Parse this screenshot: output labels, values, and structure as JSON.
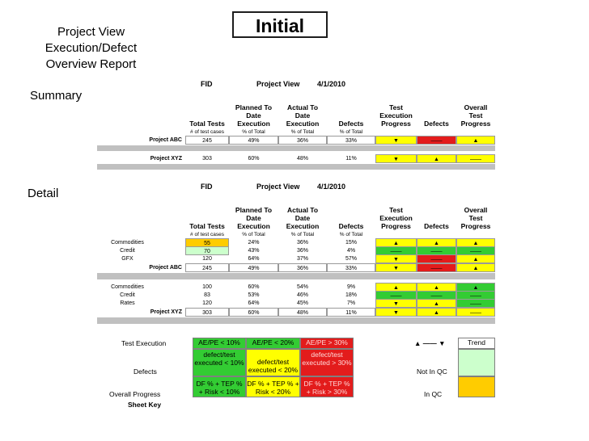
{
  "header": {
    "badge": "Initial",
    "report_title": [
      "Project View",
      "Execution/Defect",
      "Overview Report"
    ]
  },
  "sections": {
    "summary": "Summary",
    "detail": "Detail"
  },
  "table_header": {
    "fid": "FID",
    "view": "Project View",
    "date": "4/1/2010",
    "columns": [
      [
        "Total Tests"
      ],
      [
        "Planned To",
        "Date",
        "Execution"
      ],
      [
        "Actual To",
        "Date",
        "Execution"
      ],
      [
        "Defects"
      ],
      [
        "Test",
        "Execution",
        "Progress"
      ],
      [
        "Defects"
      ],
      [
        "Overall",
        "Test",
        "Progress"
      ]
    ],
    "subcolumns": [
      "# of test cases",
      "% of Total",
      "% of Total",
      "% of Total"
    ]
  },
  "summary_rows": [
    {
      "name": "Project ABC",
      "values": [
        "245",
        "49%",
        "36%",
        "33%"
      ],
      "trends": [
        {
          "s": "▼",
          "c": "yellow"
        },
        {
          "s": "——",
          "c": "red"
        },
        {
          "s": "▲",
          "c": "yellow"
        }
      ]
    },
    {
      "name": "Project XYZ",
      "values": [
        "303",
        "60%",
        "48%",
        "11%"
      ],
      "trends": [
        {
          "s": "▼",
          "c": "yellow"
        },
        {
          "s": "▲",
          "c": "yellow"
        },
        {
          "s": "——",
          "c": "yellow"
        }
      ]
    }
  ],
  "detail_groups": [
    {
      "rows": [
        {
          "name": "Commodities",
          "values": [
            "55",
            "24%",
            "36%",
            "15%"
          ],
          "first_color": "orange",
          "trends": [
            {
              "s": "▲",
              "c": "yellow"
            },
            {
              "s": "▲",
              "c": "yellow"
            },
            {
              "s": "▲",
              "c": "yellow"
            }
          ]
        },
        {
          "name": "Credit",
          "values": [
            "70",
            "43%",
            "36%",
            "4%"
          ],
          "first_color": "lightgreen",
          "trends": [
            {
              "s": "——",
              "c": "green"
            },
            {
              "s": "——",
              "c": "green"
            },
            {
              "s": "——",
              "c": "green"
            }
          ]
        },
        {
          "name": "GFX",
          "values": [
            "120",
            "64%",
            "37%",
            "57%"
          ],
          "first_color": "",
          "trends": [
            {
              "s": "▼",
              "c": "yellow"
            },
            {
              "s": "——",
              "c": "red"
            },
            {
              "s": "▲",
              "c": "yellow"
            }
          ]
        }
      ],
      "total": {
        "name": "Project ABC",
        "values": [
          "245",
          "49%",
          "36%",
          "33%"
        ],
        "trends": [
          {
            "s": "▼",
            "c": "yellow"
          },
          {
            "s": "——",
            "c": "red"
          },
          {
            "s": "▲",
            "c": "yellow"
          }
        ]
      }
    },
    {
      "rows": [
        {
          "name": "Commodities",
          "values": [
            "100",
            "60%",
            "54%",
            "9%"
          ],
          "first_color": "",
          "trends": [
            {
              "s": "▲",
              "c": "yellow"
            },
            {
              "s": "▲",
              "c": "yellow"
            },
            {
              "s": "▲",
              "c": "green"
            }
          ]
        },
        {
          "name": "Credit",
          "values": [
            "83",
            "53%",
            "46%",
            "18%"
          ],
          "first_color": "",
          "trends": [
            {
              "s": "——",
              "c": "green"
            },
            {
              "s": "——",
              "c": "green"
            },
            {
              "s": "——",
              "c": "green"
            }
          ]
        },
        {
          "name": "Rates",
          "values": [
            "120",
            "64%",
            "45%",
            "7%"
          ],
          "first_color": "",
          "trends": [
            {
              "s": "▼",
              "c": "yellow"
            },
            {
              "s": "▲",
              "c": "yellow"
            },
            {
              "s": "——",
              "c": "green"
            }
          ]
        }
      ],
      "total": {
        "name": "Project XYZ",
        "values": [
          "303",
          "60%",
          "48%",
          "11%"
        ],
        "trends": [
          {
            "s": "▼",
            "c": "yellow"
          },
          {
            "s": "▲",
            "c": "yellow"
          },
          {
            "s": "——",
            "c": "yellow"
          }
        ]
      }
    }
  ],
  "sheet_key": {
    "title": "Sheet Key",
    "row_labels": [
      "Test Execution",
      "Defects",
      "Overall Progress"
    ],
    "cells": [
      [
        "AE/PE  < 10%",
        "AE/PE  < 20%",
        "AE/PE  > 30%"
      ],
      [
        "defect/test executed < 10%",
        "defect/test executed < 20%",
        "defect/test executed > 30%"
      ],
      [
        "DF % + TEP % + Risk < 10%",
        "DF % + TEP % + Risk < 20%",
        "DF % + TEP % + Risk > 30%"
      ]
    ],
    "trend_symbols": "▲ —— ▼",
    "trend_label": "Trend",
    "not_in_qc": "Not In QC",
    "in_qc": "In QC"
  },
  "colors": {
    "green": "#33cc33",
    "yellow": "#ffff00",
    "red": "#e31c1c",
    "lightgreen": "#ccffcc",
    "orange": "#ffcc00",
    "band": "#c0c0c0"
  }
}
